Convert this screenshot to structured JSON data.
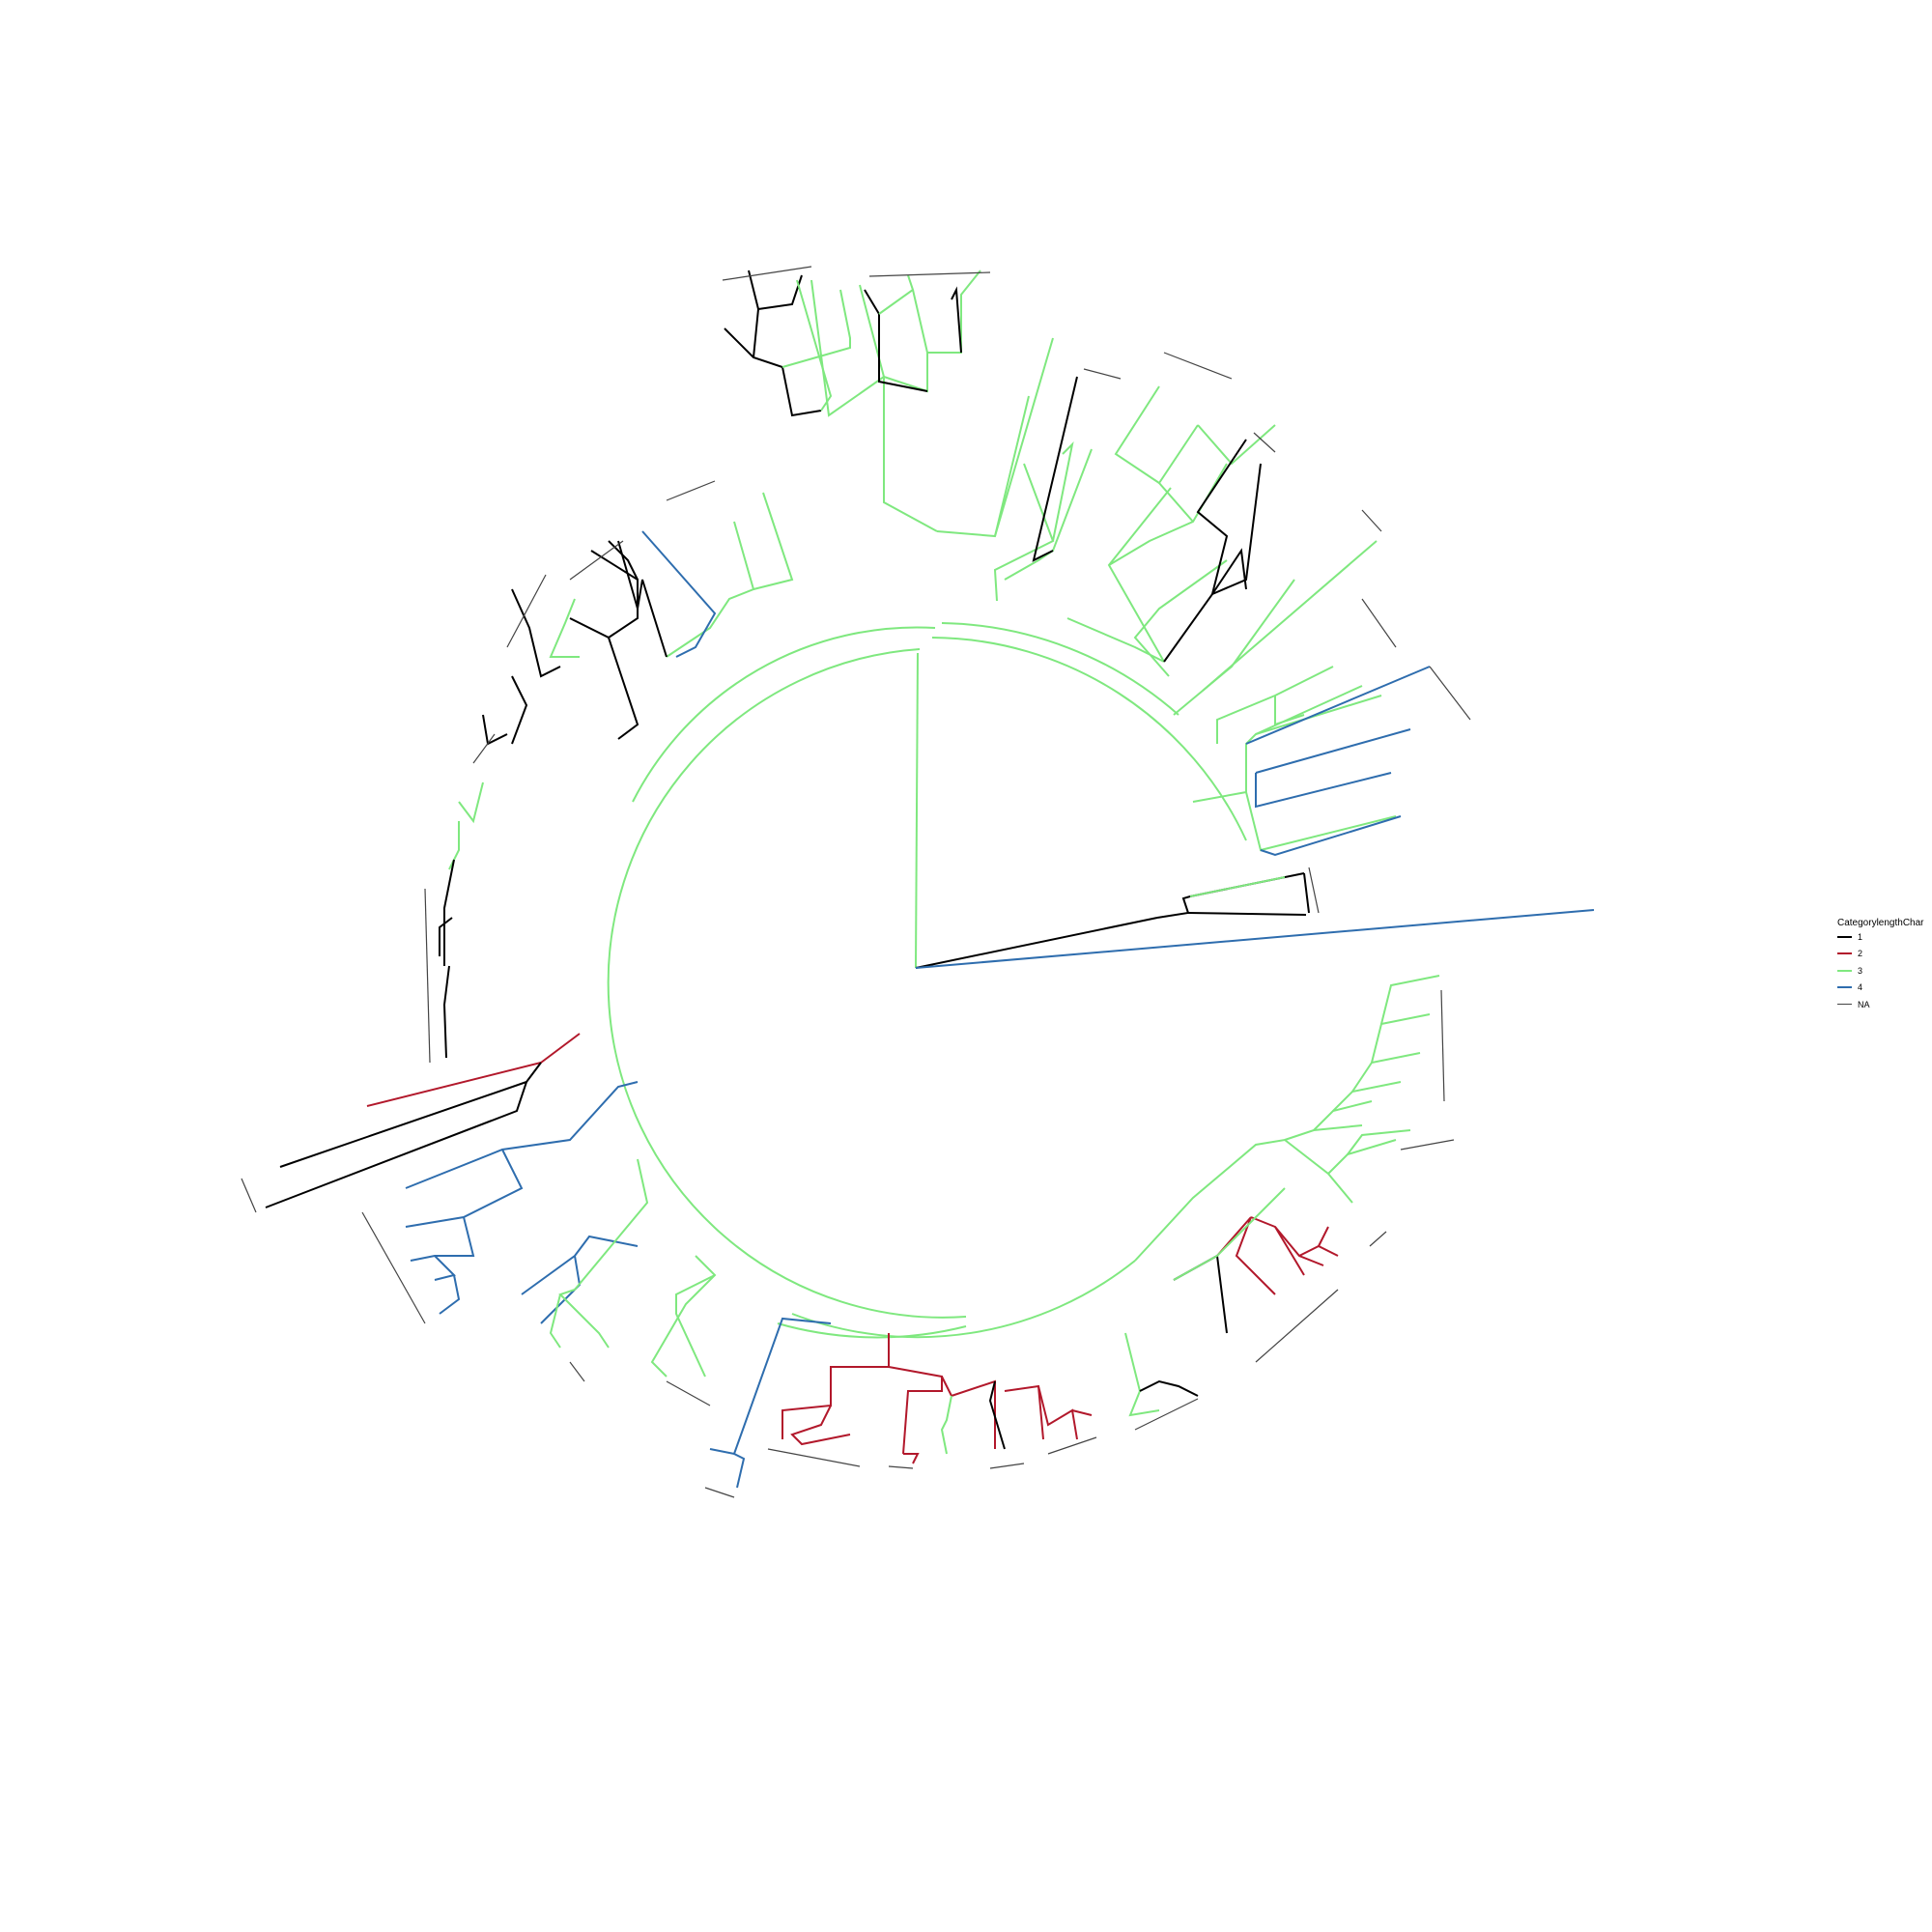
{
  "legend": {
    "title": "CategorylengthChar",
    "items": [
      {
        "label": "1",
        "color": "#000000"
      },
      {
        "label": "2",
        "color": "#B2182B"
      },
      {
        "label": "3",
        "color": "#7FE87F"
      },
      {
        "label": "4",
        "color": "#2E6DAE"
      },
      {
        "label": "NA",
        "color": "#444444"
      }
    ]
  }
}
